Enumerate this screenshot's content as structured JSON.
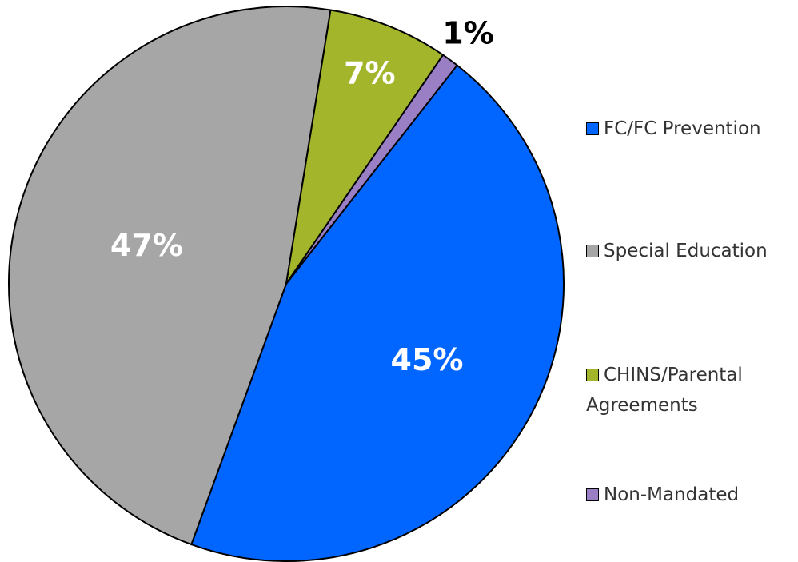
{
  "chart_data": {
    "type": "pie",
    "categories": [
      "FC/FC Prevention",
      "Special Education",
      "CHINS/Parental Agreements",
      "Non-Mandated"
    ],
    "values": [
      45,
      47,
      7,
      1
    ],
    "value_labels": [
      "45%",
      "47%",
      "7%",
      "1%"
    ],
    "colors": [
      "#0066ff",
      "#a6a6a6",
      "#a3b52b",
      "#9a7fc4"
    ],
    "legend": "right"
  }
}
